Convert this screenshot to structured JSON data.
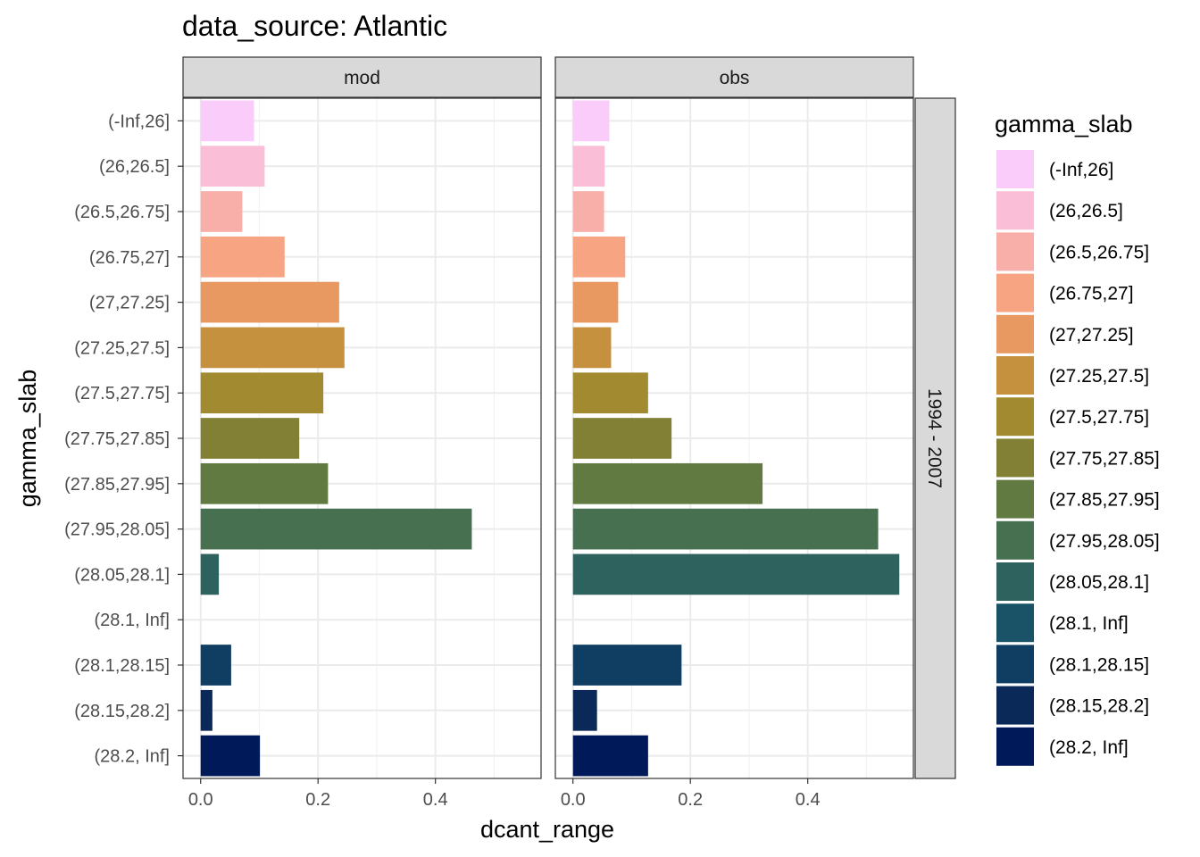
{
  "chart_data": {
    "type": "bar",
    "orientation": "horizontal",
    "title": "data_source: Atlantic",
    "xlabel": "dcant_range",
    "ylabel": "gamma_slab",
    "xlim": [
      -0.03,
      0.58
    ],
    "x_ticks": [
      0.0,
      0.2,
      0.4
    ],
    "x_tick_labels": [
      "0.0",
      "0.2",
      "0.4"
    ],
    "grid": true,
    "row_facet": "1994 - 2007",
    "categories": [
      "(-Inf,26]",
      "(26,26.5]",
      "(26.5,26.75]",
      "(26.75,27]",
      "(27,27.25]",
      "(27.25,27.5]",
      "(27.5,27.75]",
      "(27.75,27.85]",
      "(27.85,27.95]",
      "(27.95,28.05]",
      "(28.05,28.1]",
      "(28.1, Inf]",
      "(28.1,28.15]",
      "(28.15,28.2]",
      "(28.2, Inf]"
    ],
    "colors": [
      "#F9CCF9",
      "#FBBED7",
      "#F9AFA9",
      "#F7A483",
      "#E89961",
      "#C6913F",
      "#A18A30",
      "#828034",
      "#617A42",
      "#467050",
      "#2E625F",
      "#1A5368",
      "#103D62",
      "#0A2858",
      "#001959"
    ],
    "panels": [
      {
        "label": "mod",
        "values": [
          0.091,
          0.109,
          0.071,
          0.143,
          0.236,
          0.245,
          0.209,
          0.168,
          0.217,
          0.462,
          0.031,
          null,
          0.052,
          0.02,
          0.101
        ]
      },
      {
        "label": "obs",
        "values": [
          0.062,
          0.054,
          0.053,
          0.089,
          0.077,
          0.065,
          0.128,
          0.168,
          0.323,
          0.52,
          0.556,
          null,
          0.185,
          0.041,
          0.128
        ]
      }
    ],
    "legend": {
      "title": "gamma_slab",
      "position": "right",
      "entries": [
        "(-Inf,26]",
        "(26,26.5]",
        "(26.5,26.75]",
        "(26.75,27]",
        "(27,27.25]",
        "(27.25,27.5]",
        "(27.5,27.75]",
        "(27.75,27.85]",
        "(27.85,27.95]",
        "(27.95,28.05]",
        "(28.05,28.1]",
        "(28.1, Inf]",
        "(28.1,28.15]",
        "(28.15,28.2]",
        "(28.2, Inf]"
      ]
    }
  }
}
